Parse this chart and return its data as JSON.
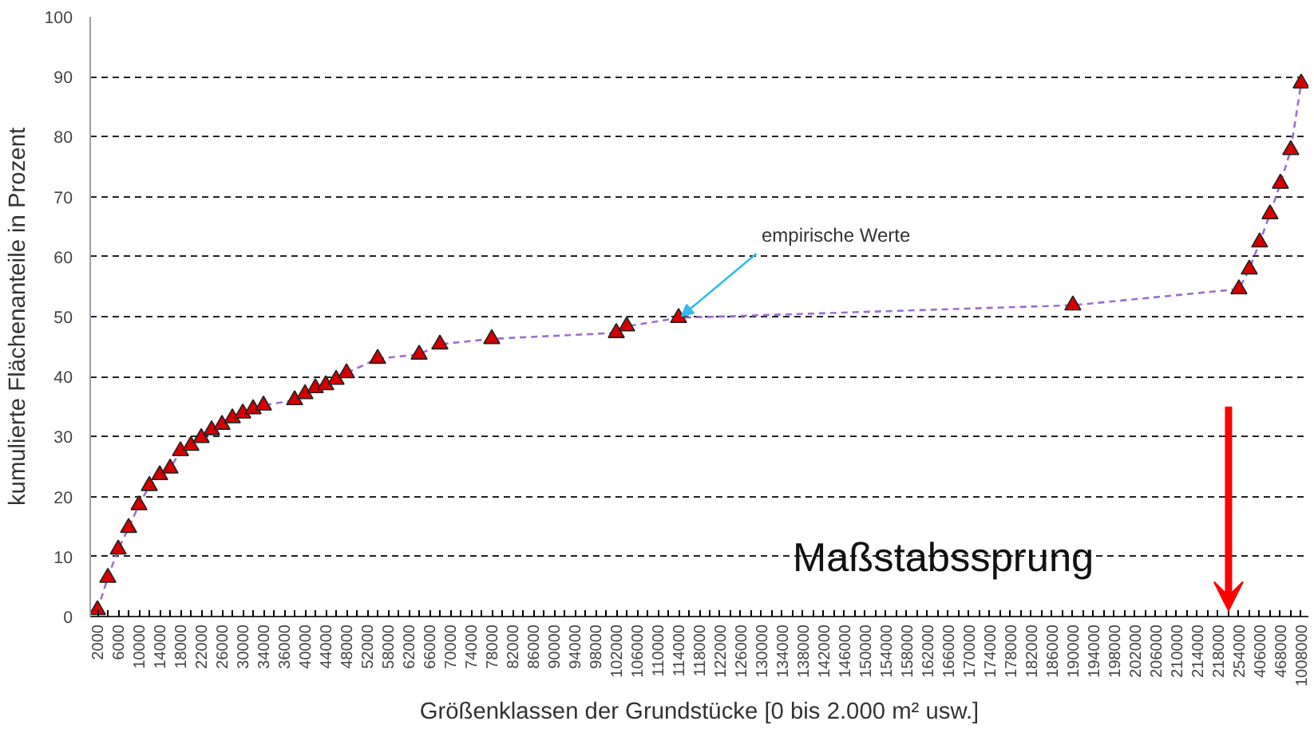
{
  "chart_data": {
    "type": "line",
    "xlabel": "Größenklassen der Grundstücke [0 bis 2.000 m² usw.]",
    "ylabel": "kumulierte Flächenanteile in Prozent",
    "categories": [
      "2000",
      null,
      "6000",
      null,
      "10000",
      null,
      "14000",
      null,
      "18000",
      null,
      "22000",
      null,
      "26000",
      null,
      "30000",
      null,
      "34000",
      null,
      "36000",
      null,
      "40000",
      null,
      "44000",
      null,
      "48000",
      null,
      "52000",
      null,
      "58000",
      null,
      "62000",
      null,
      "66000",
      null,
      "70000",
      null,
      "74000",
      null,
      "78000",
      null,
      "82000",
      null,
      "86000",
      null,
      "90000",
      null,
      "94000",
      null,
      "98000",
      null,
      "102000",
      null,
      "106000",
      null,
      "110000",
      null,
      "114000",
      null,
      "118000",
      null,
      "122000",
      null,
      "126000",
      null,
      "130000",
      null,
      "134000",
      null,
      "138000",
      null,
      "142000",
      null,
      "146000",
      null,
      "150000",
      null,
      "154000",
      null,
      "158000",
      null,
      "162000",
      null,
      "166000",
      null,
      "170000",
      null,
      "174000",
      null,
      "178000",
      null,
      "182000",
      null,
      "186000",
      null,
      "190000",
      null,
      "194000",
      null,
      "198000",
      null,
      "202000",
      null,
      "206000",
      null,
      "210000",
      null,
      "214000",
      null,
      "218000",
      null,
      "254000",
      null,
      "406000",
      null,
      "468000",
      null,
      "1008000"
    ],
    "series": [
      {
        "color": "#9b6fd0",
        "line_style": "dashed",
        "marker": "none",
        "values": [
          1.1,
          6.5,
          11.2,
          14.8,
          18.6,
          21.8,
          23.6,
          24.7,
          27.6,
          28.5,
          29.8,
          31.1,
          32,
          33.1,
          33.9,
          34.6,
          35.2,
          null,
          null,
          36.1,
          37.1,
          38.1,
          38.6,
          39.5,
          40.6,
          null,
          null,
          43,
          null,
          null,
          null,
          43.7,
          null,
          45.4,
          null,
          null,
          null,
          null,
          46.3,
          null,
          null,
          null,
          null,
          null,
          null,
          null,
          null,
          null,
          null,
          null,
          47.3,
          48.4,
          null,
          null,
          null,
          null,
          49.8,
          null,
          null,
          null,
          null,
          null,
          null,
          null,
          null,
          null,
          null,
          null,
          null,
          null,
          null,
          null,
          null,
          null,
          null,
          null,
          null,
          null,
          null,
          null,
          null,
          null,
          null,
          null,
          null,
          null,
          null,
          null,
          null,
          null,
          null,
          null,
          null,
          null,
          51.9,
          null,
          null,
          null,
          null,
          null,
          null,
          null,
          null,
          null,
          null,
          null,
          null,
          null,
          null,
          null,
          54.6,
          57.9,
          62.4,
          67.1,
          72.2,
          77.8,
          88.9
        ]
      },
      {
        "type": "scatter",
        "color": "#d40000",
        "marker": "triangle",
        "values": [
          1.1,
          6.5,
          11.2,
          14.8,
          18.6,
          21.8,
          23.6,
          24.7,
          27.6,
          28.5,
          29.8,
          31.1,
          32,
          33.1,
          33.9,
          34.6,
          35.2,
          null,
          null,
          36.1,
          37.1,
          38.1,
          38.6,
          39.5,
          40.6,
          null,
          null,
          43,
          null,
          null,
          null,
          43.7,
          null,
          45.4,
          null,
          null,
          null,
          null,
          46.3,
          null,
          null,
          null,
          null,
          null,
          null,
          null,
          null,
          null,
          null,
          null,
          47.3,
          48.4,
          null,
          null,
          null,
          null,
          49.8,
          null,
          null,
          null,
          null,
          null,
          null,
          null,
          null,
          null,
          null,
          null,
          null,
          null,
          null,
          null,
          null,
          null,
          null,
          null,
          null,
          null,
          null,
          null,
          null,
          null,
          null,
          null,
          null,
          null,
          null,
          null,
          null,
          null,
          null,
          null,
          null,
          null,
          51.9,
          null,
          null,
          null,
          null,
          null,
          null,
          null,
          null,
          null,
          null,
          null,
          null,
          null,
          null,
          null,
          54.6,
          57.9,
          62.4,
          67.1,
          72.2,
          77.8,
          88.9
        ]
      }
    ],
    "ylim": [
      0,
      100
    ],
    "yticks": [
      0,
      10,
      20,
      30,
      40,
      50,
      60,
      70,
      80,
      90,
      100
    ],
    "grid": "y",
    "annotations": [
      {
        "text": "empirische Werte",
        "x": "114000",
        "y": 49.8
      },
      "Maßstabssprung"
    ]
  }
}
